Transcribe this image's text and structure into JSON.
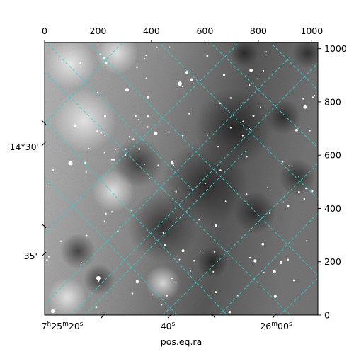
{
  "figure": {
    "kind": "astronomical-image-with-wcs-grid",
    "colormap": "grayscale",
    "grid_color": "#26d4d4",
    "grid_style": "dashed"
  },
  "axes": {
    "top": {
      "ticks": [
        "0",
        "200",
        "400",
        "600",
        "800",
        "1000"
      ],
      "values": [
        0,
        200,
        400,
        600,
        800,
        1000
      ]
    },
    "right": {
      "ticks": [
        "0",
        "200",
        "400",
        "600",
        "800",
        "1000"
      ],
      "values": [
        0,
        200,
        400,
        600,
        800,
        1000
      ]
    },
    "pixel_range": [
      0,
      1023
    ],
    "left": {
      "ticks": [
        "14°30'",
        "35'"
      ]
    },
    "bottom": {
      "ticks": [
        {
          "base": "7",
          "sup1": "h",
          "mid1": "25",
          "sup2": "m",
          "mid2": "20",
          "sup3": "s"
        },
        {
          "base": "40",
          "sup1": "s"
        },
        {
          "base": "26",
          "sup1": "m",
          "mid1": "00",
          "sup2": "s"
        }
      ],
      "label": "pos.eq.ra"
    }
  }
}
